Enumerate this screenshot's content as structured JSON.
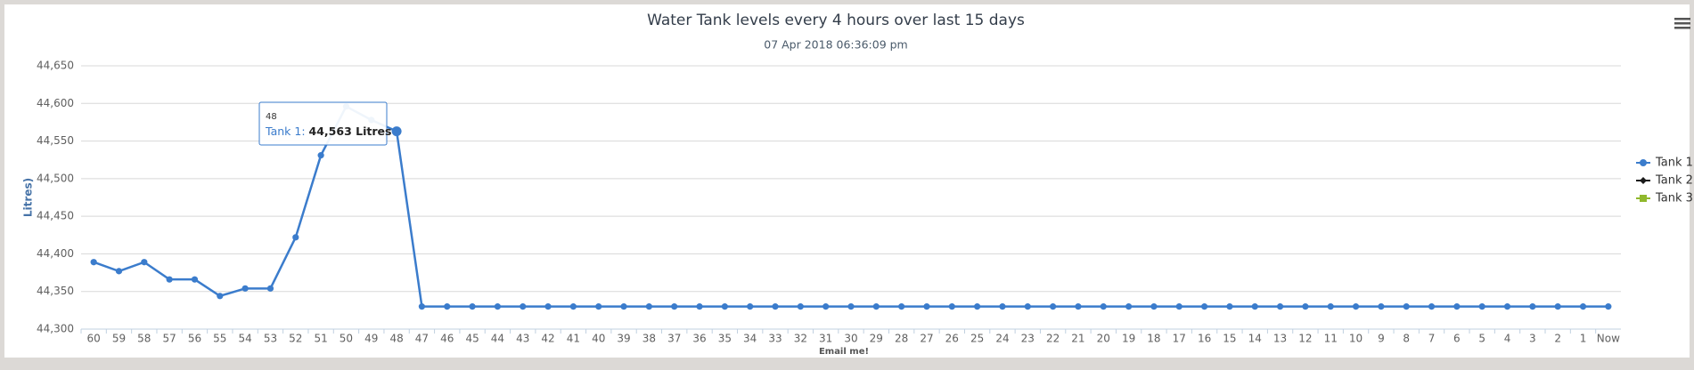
{
  "chart_data": {
    "type": "line",
    "title": "Water Tank levels every 4 hours over last 15 days",
    "subtitle": "07 Apr 2018 06:36:09 pm",
    "y_axis_label": "Litres)",
    "x_axis_label": "Email me!",
    "categories": [
      "60",
      "59",
      "58",
      "57",
      "56",
      "55",
      "54",
      "53",
      "52",
      "51",
      "50",
      "49",
      "48",
      "47",
      "46",
      "45",
      "44",
      "43",
      "42",
      "41",
      "40",
      "39",
      "38",
      "37",
      "36",
      "35",
      "34",
      "33",
      "32",
      "31",
      "30",
      "29",
      "28",
      "27",
      "26",
      "25",
      "24",
      "23",
      "22",
      "21",
      "20",
      "19",
      "18",
      "17",
      "16",
      "15",
      "14",
      "13",
      "12",
      "11",
      "10",
      "9",
      "8",
      "7",
      "6",
      "5",
      "4",
      "3",
      "2",
      "1",
      "Now"
    ],
    "series": [
      {
        "name": "Tank 1",
        "color": "#3b7ccc",
        "marker": "circle",
        "values": [
          44389,
          44377,
          44389,
          44366,
          44366,
          44344,
          44354,
          44354,
          44422,
          44531,
          44596,
          44578,
          44563,
          44330,
          44330,
          44330,
          44330,
          44330,
          44330,
          44330,
          44330,
          44330,
          44330,
          44330,
          44330,
          44330,
          44330,
          44330,
          44330,
          44330,
          44330,
          44330,
          44330,
          44330,
          44330,
          44330,
          44330,
          44330,
          44330,
          44330,
          44330,
          44330,
          44330,
          44330,
          44330,
          44330,
          44330,
          44330,
          44330,
          44330,
          44330,
          44330,
          44330,
          44330,
          44330,
          44330,
          44330,
          44330,
          44330,
          44330,
          44330
        ]
      },
      {
        "name": "Tank 2",
        "color": "#1a1a1a",
        "marker": "diamond",
        "values": [
          null,
          null,
          null,
          null,
          null,
          null,
          null,
          null,
          null,
          null,
          null,
          null,
          null,
          null,
          null,
          null,
          null,
          null,
          null,
          null,
          null,
          null,
          null,
          null,
          null,
          null,
          null,
          null,
          null,
          null,
          null,
          null,
          null,
          null,
          null,
          null,
          null,
          null,
          null,
          null,
          null,
          null,
          null,
          null,
          null,
          null,
          null,
          null,
          null,
          null,
          null,
          null,
          null,
          null,
          null,
          null,
          null,
          null,
          null,
          null,
          null
        ]
      },
      {
        "name": "Tank 3",
        "color": "#90b82c",
        "marker": "square",
        "values": [
          null,
          null,
          null,
          null,
          null,
          null,
          null,
          null,
          null,
          null,
          null,
          null,
          null,
          null,
          null,
          null,
          null,
          null,
          null,
          null,
          null,
          null,
          null,
          null,
          null,
          null,
          null,
          null,
          null,
          null,
          null,
          null,
          null,
          null,
          null,
          null,
          null,
          null,
          null,
          null,
          null,
          null,
          null,
          null,
          null,
          null,
          null,
          null,
          null,
          null,
          null,
          null,
          null,
          null,
          null,
          null,
          null,
          null,
          null,
          null,
          null
        ]
      }
    ],
    "ylim": [
      44300,
      44650
    ],
    "yticks": [
      {
        "value": 44300,
        "label": "44,300"
      },
      {
        "value": 44350,
        "label": "44,350"
      },
      {
        "value": 44400,
        "label": "44,400"
      },
      {
        "value": 44450,
        "label": "44,450"
      },
      {
        "value": 44500,
        "label": "44,500"
      },
      {
        "value": 44550,
        "label": "44,550"
      },
      {
        "value": 44600,
        "label": "44,600"
      },
      {
        "value": 44650,
        "label": "44,650"
      }
    ],
    "grid": true,
    "legend": "right",
    "tooltip": {
      "category": "48",
      "series_label": "Tank 1:",
      "value_label": "44,563 Litres"
    }
  }
}
